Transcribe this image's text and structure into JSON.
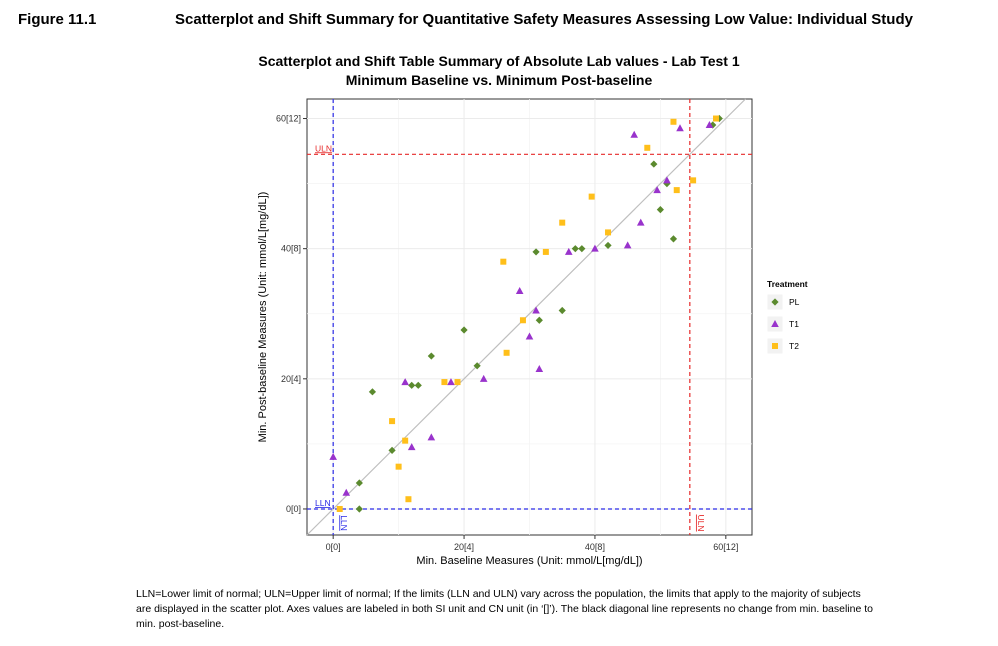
{
  "figure": {
    "label": "Figure 11.1",
    "title": "Scatterplot and Shift Summary for Quantitative Safety Measures Assessing Low Value: Individual Study"
  },
  "footnote": "LLN=Lower limit of normal; ULN=Upper limit of normal; If the limits (LLN and ULN) vary across the population, the limits that apply to the majority of subjects are displayed in the scatter plot.  Axes values are labeled in both SI unit and CN unit (in ‘[]’). The black diagonal line represents no change from min. baseline to min. post-baseline.",
  "colors": {
    "PL": "#5b8a2e",
    "T1": "#9933cc",
    "T2": "#ffbf1a",
    "LLN": "#2a2ae6",
    "ULN": "#e62a2a",
    "diagonal": "#bfbfbf",
    "grid": "#ebebeb"
  },
  "chart_data": {
    "type": "scatter",
    "title": "Scatterplot and Shift Table Summary of Absolute Lab values  -  Lab Test 1",
    "subtitle": "Minimum Baseline vs. Minimum Post-baseline",
    "xlabel": "Min. Baseline Measures (Unit: mmol/L[mg/dL])",
    "ylabel": "Min. Post-baseline Measures (Unit: mmol/L[mg/dL])",
    "xlim": [
      -4,
      64
    ],
    "ylim": [
      -4,
      63
    ],
    "xticks": [
      0,
      20,
      40,
      60
    ],
    "xtick_labels": [
      "0[0]",
      "20[4]",
      "40[8]",
      "60[12]"
    ],
    "yticks": [
      0,
      20,
      40,
      60
    ],
    "ytick_labels": [
      "0[0]",
      "20[4]",
      "40[8]",
      "60[12]"
    ],
    "grid": true,
    "diagonal": true,
    "reference_lines": {
      "LLN": {
        "x": 0,
        "y": 0,
        "label": "LLN"
      },
      "ULN": {
        "x": 54.5,
        "y": 54.5,
        "label": "ULN"
      }
    },
    "legend": {
      "title": "Treatment",
      "position": "right"
    },
    "series": [
      {
        "name": "PL",
        "marker": "diamond",
        "points": [
          [
            4,
            4
          ],
          [
            4,
            0
          ],
          [
            6,
            18
          ],
          [
            9,
            9
          ],
          [
            12,
            19
          ],
          [
            13,
            19
          ],
          [
            15,
            23.5
          ],
          [
            20,
            27.5
          ],
          [
            22,
            22
          ],
          [
            31,
            39.5
          ],
          [
            31.5,
            29
          ],
          [
            35,
            30.5
          ],
          [
            37,
            40
          ],
          [
            38,
            40
          ],
          [
            42,
            40.5
          ],
          [
            49,
            53
          ],
          [
            50,
            46
          ],
          [
            51,
            50
          ],
          [
            52,
            41.5
          ],
          [
            58,
            59
          ],
          [
            59,
            60
          ]
        ]
      },
      {
        "name": "T1",
        "marker": "triangle",
        "points": [
          [
            0,
            8
          ],
          [
            2,
            2.5
          ],
          [
            11,
            19.5
          ],
          [
            12,
            9.5
          ],
          [
            15,
            11
          ],
          [
            18,
            19.5
          ],
          [
            23,
            20
          ],
          [
            28.5,
            33.5
          ],
          [
            30,
            26.5
          ],
          [
            31,
            30.5
          ],
          [
            31.5,
            21.5
          ],
          [
            36,
            39.5
          ],
          [
            40,
            40
          ],
          [
            45,
            40.5
          ],
          [
            46,
            57.5
          ],
          [
            47,
            44
          ],
          [
            49.5,
            49
          ],
          [
            51,
            50.5
          ],
          [
            53,
            58.5
          ],
          [
            57.5,
            59
          ]
        ]
      },
      {
        "name": "T2",
        "marker": "square",
        "points": [
          [
            1,
            0
          ],
          [
            9,
            13.5
          ],
          [
            10,
            6.5
          ],
          [
            11,
            10.5
          ],
          [
            11.5,
            1.5
          ],
          [
            17,
            19.5
          ],
          [
            19,
            19.5
          ],
          [
            26,
            38
          ],
          [
            26.5,
            24
          ],
          [
            29,
            29
          ],
          [
            32.5,
            39.5
          ],
          [
            35,
            44
          ],
          [
            39.5,
            48
          ],
          [
            42,
            42.5
          ],
          [
            48,
            55.5
          ],
          [
            52,
            59.5
          ],
          [
            52.5,
            49
          ],
          [
            55,
            50.5
          ],
          [
            58.5,
            60
          ]
        ]
      }
    ]
  }
}
